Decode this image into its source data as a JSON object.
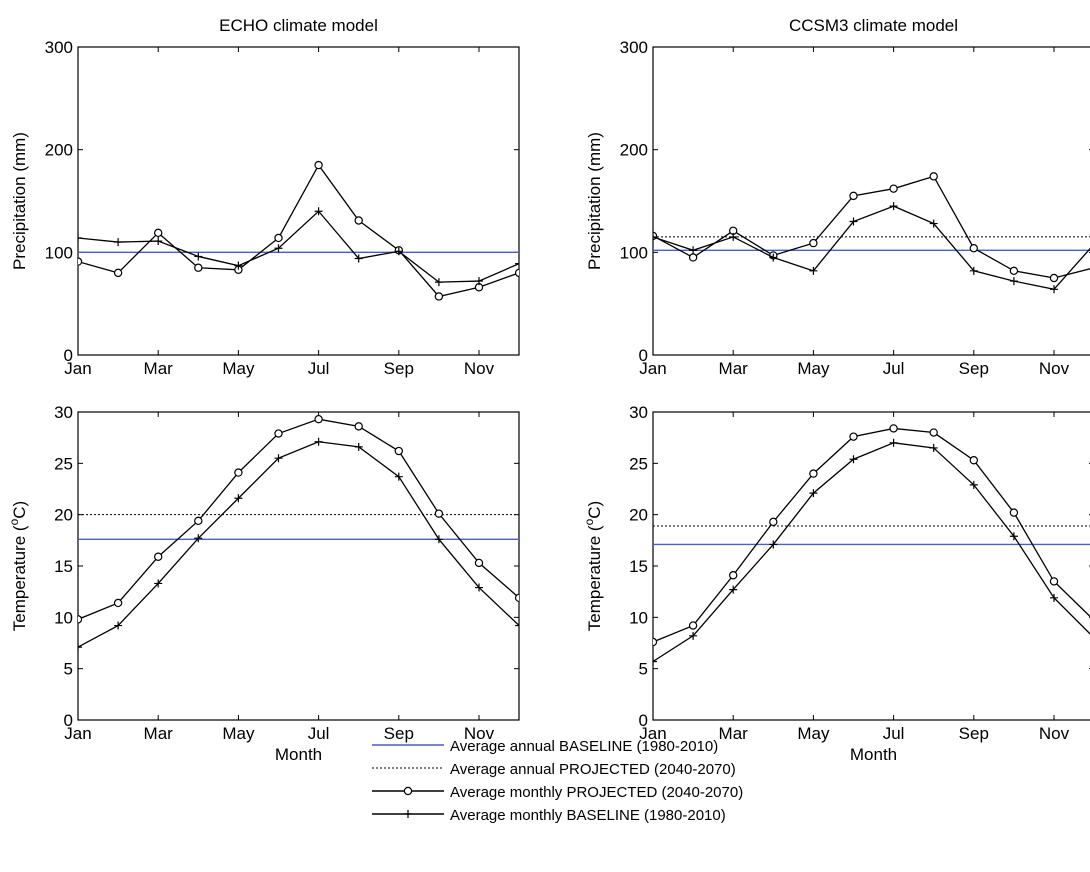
{
  "legend": {
    "items": [
      {
        "key": "baseline_annual",
        "label": "Average annual BASELINE (1980-2010)",
        "color": "#4a5fc1",
        "style": "solid"
      },
      {
        "key": "projected_annual",
        "label": "Average annual PROJECTED (2040-2070)",
        "color": "#000000",
        "style": "dotted"
      },
      {
        "key": "projected_monthly",
        "label": "Average monthly PROJECTED (2040-2070)",
        "color": "#000000",
        "style": "circle-marker"
      },
      {
        "key": "baseline_monthly",
        "label": "Average monthly BASELINE (1980-2010)",
        "color": "#000000",
        "style": "plus-marker"
      }
    ]
  },
  "chart_data": [
    {
      "type": "line",
      "title": "ECHO climate model",
      "xlabel": "",
      "ylabel": "Precipitation (mm)",
      "x": [
        "Jan",
        "Feb",
        "Mar",
        "Apr",
        "May",
        "Jun",
        "Jul",
        "Aug",
        "Sep",
        "Oct",
        "Nov",
        "Dec"
      ],
      "x_tick_labels": [
        "Jan",
        "Mar",
        "May",
        "Jul",
        "Sep",
        "Nov"
      ],
      "ylim": [
        0,
        300
      ],
      "y_ticks": [
        0,
        100,
        200,
        300
      ],
      "grid": false,
      "series": [
        {
          "key": "projected_monthly",
          "values": [
            91,
            80,
            119,
            85,
            83,
            114,
            185,
            131,
            102,
            57,
            66,
            80
          ]
        },
        {
          "key": "baseline_monthly",
          "values": [
            114,
            110,
            111,
            96,
            87,
            104,
            140,
            94,
            101,
            71,
            72,
            89
          ]
        }
      ],
      "hlines": [
        {
          "key": "projected_annual",
          "value": 100
        },
        {
          "key": "baseline_annual",
          "value": 100
        }
      ]
    },
    {
      "type": "line",
      "title": "CCSM3 climate model",
      "xlabel": "",
      "ylabel": "Precipitation (mm)",
      "x": [
        "Jan",
        "Feb",
        "Mar",
        "Apr",
        "May",
        "Jun",
        "Jul",
        "Aug",
        "Sep",
        "Oct",
        "Nov",
        "Dec"
      ],
      "x_tick_labels": [
        "Jan",
        "Mar",
        "May",
        "Jul",
        "Sep",
        "Nov"
      ],
      "ylim": [
        0,
        300
      ],
      "y_ticks": [
        0,
        100,
        200,
        300
      ],
      "grid": false,
      "series": [
        {
          "key": "projected_monthly",
          "values": [
            116,
            95,
            121,
            97,
            109,
            155,
            162,
            174,
            104,
            82,
            75,
            85
          ]
        },
        {
          "key": "baseline_monthly",
          "values": [
            115,
            102,
            115,
            95,
            82,
            130,
            145,
            128,
            82,
            72,
            64,
            108
          ]
        }
      ],
      "hlines": [
        {
          "key": "projected_annual",
          "value": 115
        },
        {
          "key": "baseline_annual",
          "value": 102
        }
      ]
    },
    {
      "type": "line",
      "title": "",
      "xlabel": "Month",
      "ylabel": "Temperature (°C)",
      "ylabel_parts": [
        "Temperature (",
        "o",
        "C)"
      ],
      "x": [
        "Jan",
        "Feb",
        "Mar",
        "Apr",
        "May",
        "Jun",
        "Jul",
        "Aug",
        "Sep",
        "Oct",
        "Nov",
        "Dec"
      ],
      "x_tick_labels": [
        "Jan",
        "Mar",
        "May",
        "Jul",
        "Sep",
        "Nov"
      ],
      "ylim": [
        0,
        30
      ],
      "y_ticks": [
        0,
        5,
        10,
        15,
        20,
        25,
        30
      ],
      "grid": false,
      "series": [
        {
          "key": "projected_monthly",
          "values": [
            9.8,
            11.4,
            15.9,
            19.4,
            24.1,
            27.9,
            29.3,
            28.6,
            26.2,
            20.1,
            15.3,
            11.9
          ]
        },
        {
          "key": "baseline_monthly",
          "values": [
            7.1,
            9.2,
            13.3,
            17.7,
            21.6,
            25.5,
            27.1,
            26.6,
            23.7,
            17.6,
            12.9,
            9.2
          ]
        }
      ],
      "hlines": [
        {
          "key": "projected_annual",
          "value": 20.0
        },
        {
          "key": "baseline_annual",
          "value": 17.6
        }
      ]
    },
    {
      "type": "line",
      "title": "",
      "xlabel": "Month",
      "ylabel": "Temperature (°C)",
      "ylabel_parts": [
        "Temperature (",
        "o",
        "C)"
      ],
      "x": [
        "Jan",
        "Feb",
        "Mar",
        "Apr",
        "May",
        "Jun",
        "Jul",
        "Aug",
        "Sep",
        "Oct",
        "Nov",
        "Dec"
      ],
      "x_tick_labels": [
        "Jan",
        "Mar",
        "May",
        "Jul",
        "Sep",
        "Nov"
      ],
      "ylim": [
        0,
        30
      ],
      "y_ticks": [
        0,
        5,
        10,
        15,
        20,
        25,
        30
      ],
      "grid": false,
      "series": [
        {
          "key": "projected_monthly",
          "values": [
            7.6,
            9.2,
            14.1,
            19.3,
            24.0,
            27.6,
            28.4,
            28.0,
            25.3,
            20.2,
            13.5,
            9.7
          ]
        },
        {
          "key": "baseline_monthly",
          "values": [
            5.7,
            8.2,
            12.7,
            17.1,
            22.1,
            25.4,
            27.0,
            26.5,
            22.9,
            17.9,
            11.9,
            8.0
          ]
        }
      ],
      "hlines": [
        {
          "key": "projected_annual",
          "value": 18.9
        },
        {
          "key": "baseline_annual",
          "value": 17.1
        }
      ]
    }
  ]
}
